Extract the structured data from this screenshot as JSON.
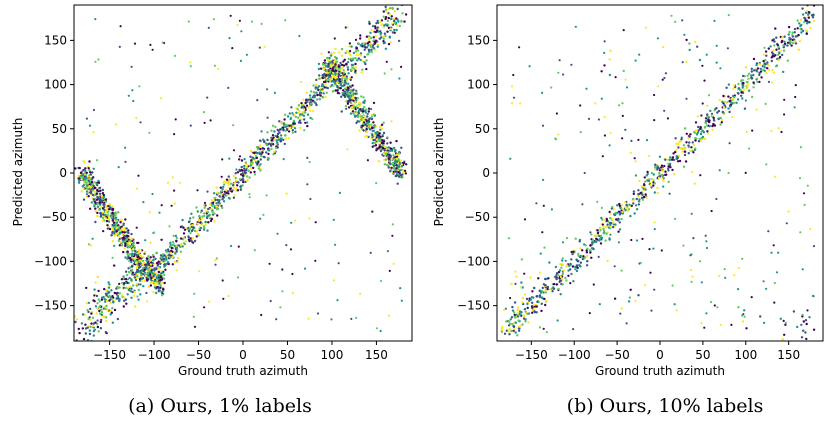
{
  "figure": {
    "colormap": [
      "#440154",
      "#3b528b",
      "#21918c",
      "#5ec962",
      "#fde725"
    ]
  },
  "chart_data": [
    {
      "type": "scatter",
      "title": "",
      "xlabel": "Ground truth azimuth",
      "ylabel": "Predicted azimuth",
      "caption": "(a) Ours, 1% labels",
      "xlim": [
        -190,
        190
      ],
      "ylim": [
        -190,
        190
      ],
      "xticks": [
        -150,
        -100,
        -50,
        0,
        50,
        100,
        150
      ],
      "yticks": [
        -150,
        -100,
        -50,
        0,
        50,
        100,
        150
      ],
      "xtick_labels": [
        "−150",
        "−100",
        "−50",
        "0",
        "50",
        "100",
        "150"
      ],
      "ytick_labels": [
        "−150",
        "−100",
        "−50",
        "0",
        "50",
        "100",
        "150"
      ],
      "grid": false,
      "series": [
        {
          "points": [
            [
              -180,
              0
            ],
            [
              -175,
              -8
            ],
            [
              -168,
              -20
            ],
            [
              -160,
              -35
            ],
            [
              -150,
              -50
            ],
            [
              -140,
              -65
            ],
            [
              -130,
              -80
            ],
            [
              -120,
              -95
            ],
            [
              -110,
              -108
            ],
            [
              -100,
              -120
            ],
            [
              -92,
              -125
            ]
          ]
        },
        {
          "points": [
            [
              -100,
              -110
            ],
            [
              -80,
              -90
            ],
            [
              -60,
              -65
            ],
            [
              -40,
              -45
            ],
            [
              -20,
              -22
            ],
            [
              0,
              0
            ],
            [
              20,
              20
            ],
            [
              40,
              40
            ],
            [
              60,
              62
            ],
            [
              80,
              85
            ],
            [
              95,
              110
            ],
            [
              100,
              118
            ]
          ]
        },
        {
          "points": [
            [
              95,
              125
            ],
            [
              105,
              110
            ],
            [
              115,
              95
            ],
            [
              125,
              80
            ],
            [
              135,
              65
            ],
            [
              145,
              50
            ],
            [
              155,
              35
            ],
            [
              165,
              20
            ],
            [
              172,
              10
            ],
            [
              178,
              2
            ]
          ]
        },
        {
          "points": [
            [
              -178,
              -178
            ],
            [
              -165,
              -160
            ],
            [
              -150,
              -145
            ],
            [
              -135,
              -130
            ],
            [
              -120,
              -118
            ],
            [
              -105,
              -102
            ]
          ]
        },
        {
          "points": [
            [
              100,
              115
            ],
            [
              115,
              120
            ],
            [
              130,
              135
            ],
            [
              145,
              150
            ],
            [
              160,
              165
            ],
            [
              175,
              178
            ]
          ]
        }
      ]
    },
    {
      "type": "scatter",
      "title": "",
      "xlabel": "Ground truth azimuth",
      "ylabel": "Predicted azimuth",
      "caption": "(b) Ours, 10% labels",
      "xlim": [
        -190,
        190
      ],
      "ylim": [
        -190,
        190
      ],
      "xticks": [
        -150,
        -100,
        -50,
        0,
        50,
        100,
        150
      ],
      "yticks": [
        -150,
        -100,
        -50,
        0,
        50,
        100,
        150
      ],
      "xtick_labels": [
        "−150",
        "−100",
        "−50",
        "0",
        "50",
        "100",
        "150"
      ],
      "ytick_labels": [
        "−150",
        "−100",
        "−50",
        "0",
        "50",
        "100",
        "150"
      ],
      "grid": false,
      "series": [
        {
          "points": [
            [
              -180,
              -180
            ],
            [
              -150,
              -150
            ],
            [
              -120,
              -120
            ],
            [
              -90,
              -90
            ],
            [
              -60,
              -60
            ],
            [
              -30,
              -30
            ],
            [
              0,
              0
            ],
            [
              30,
              30
            ],
            [
              60,
              60
            ],
            [
              90,
              90
            ],
            [
              120,
              120
            ],
            [
              150,
              150
            ],
            [
              180,
              180
            ]
          ]
        },
        {
          "points": [
            [
              -170,
              -178
            ],
            [
              -170,
              -150
            ],
            [
              -170,
              -120
            ],
            [
              -60,
              120
            ],
            [
              -40,
              -140
            ],
            [
              40,
              140
            ],
            [
              100,
              -165
            ],
            [
              150,
              -175
            ],
            [
              165,
              -165
            ],
            [
              175,
              -175
            ]
          ]
        }
      ]
    }
  ]
}
